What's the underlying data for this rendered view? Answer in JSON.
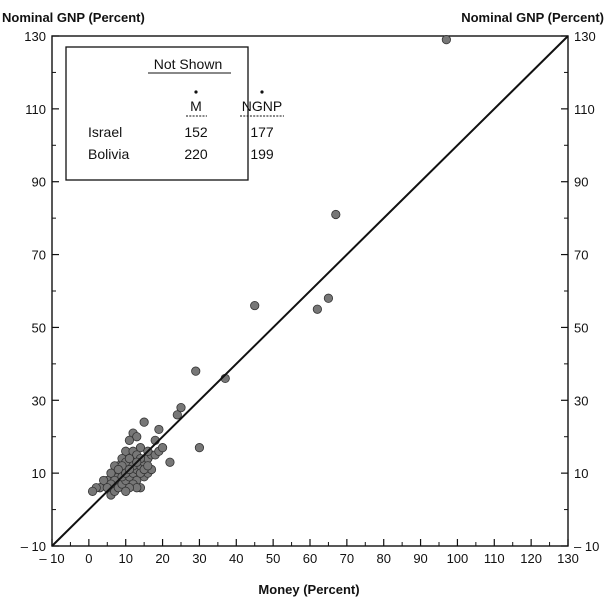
{
  "chart_data": {
    "type": "scatter",
    "title": "",
    "ylabel_left": "Nominal GNP (Percent)",
    "ylabel_right": "Nominal GNP (Percent)",
    "xlabel": "Money (Percent)",
    "xlim": [
      -10,
      130
    ],
    "ylim": [
      -10,
      130
    ],
    "x_ticks": [
      -10,
      0,
      10,
      20,
      30,
      40,
      50,
      60,
      70,
      80,
      90,
      100,
      110,
      120,
      130
    ],
    "y_ticks": [
      -10,
      10,
      30,
      50,
      70,
      90,
      110,
      130
    ],
    "x_tick_labels": [
      "– 10",
      "0",
      "10",
      "20",
      "30",
      "40",
      "50",
      "60",
      "70",
      "80",
      "90",
      "100",
      "110",
      "120",
      "130"
    ],
    "y_tick_labels_left": [
      "– 10",
      "10",
      "30",
      "50",
      "70",
      "90",
      "110",
      "130"
    ],
    "y_tick_labels_right": [
      "– 10",
      "10",
      "30",
      "50",
      "70",
      "90",
      "110",
      "130"
    ],
    "reference_line": {
      "type": "45-degree",
      "from": [
        -10,
        -10
      ],
      "to": [
        130,
        130
      ]
    },
    "inset_table": {
      "title": "Not Shown",
      "columns": [
        "",
        "M",
        "NGNP"
      ],
      "rows": [
        [
          "Israel",
          "152",
          "177"
        ],
        [
          "Bolivia",
          "220",
          "199"
        ]
      ]
    },
    "points": [
      [
        97,
        129
      ],
      [
        67,
        81
      ],
      [
        45,
        56
      ],
      [
        62,
        55
      ],
      [
        65,
        58
      ],
      [
        37,
        36
      ],
      [
        29,
        38
      ],
      [
        30,
        17
      ],
      [
        22,
        13
      ],
      [
        24,
        26
      ],
      [
        25,
        28
      ],
      [
        15,
        24
      ],
      [
        19,
        22
      ],
      [
        18,
        19
      ],
      [
        12,
        21
      ],
      [
        13,
        20
      ],
      [
        14,
        17
      ],
      [
        11,
        19
      ],
      [
        10,
        16
      ],
      [
        9,
        14
      ],
      [
        8,
        12
      ],
      [
        7,
        12
      ],
      [
        6,
        10
      ],
      [
        5,
        8
      ],
      [
        4,
        8
      ],
      [
        3,
        6
      ],
      [
        2,
        6
      ],
      [
        1,
        5
      ],
      [
        6,
        4
      ],
      [
        7,
        5
      ],
      [
        8,
        6
      ],
      [
        9,
        7
      ],
      [
        10,
        8
      ],
      [
        11,
        9
      ],
      [
        12,
        10
      ],
      [
        13,
        11
      ],
      [
        14,
        12
      ],
      [
        15,
        13
      ],
      [
        16,
        14
      ],
      [
        17,
        15
      ],
      [
        12,
        13
      ],
      [
        11,
        12
      ],
      [
        10,
        11
      ],
      [
        9,
        10
      ],
      [
        8,
        9
      ],
      [
        13,
        8
      ],
      [
        14,
        6
      ],
      [
        15,
        9
      ],
      [
        16,
        10
      ],
      [
        17,
        11
      ],
      [
        18,
        15
      ],
      [
        19,
        16
      ],
      [
        20,
        17
      ],
      [
        12,
        16
      ],
      [
        13,
        15
      ],
      [
        14,
        14
      ],
      [
        10,
        13
      ],
      [
        9,
        12
      ],
      [
        11,
        14
      ],
      [
        12,
        12
      ],
      [
        13,
        13
      ],
      [
        7,
        8
      ],
      [
        6,
        7
      ],
      [
        5,
        6
      ],
      [
        8,
        11
      ],
      [
        9,
        9
      ],
      [
        10,
        10
      ],
      [
        11,
        11
      ],
      [
        14,
        10
      ],
      [
        15,
        11
      ],
      [
        16,
        12
      ],
      [
        12,
        7
      ],
      [
        13,
        6
      ],
      [
        11,
        6
      ],
      [
        10,
        5
      ],
      [
        16,
        16
      ]
    ]
  }
}
